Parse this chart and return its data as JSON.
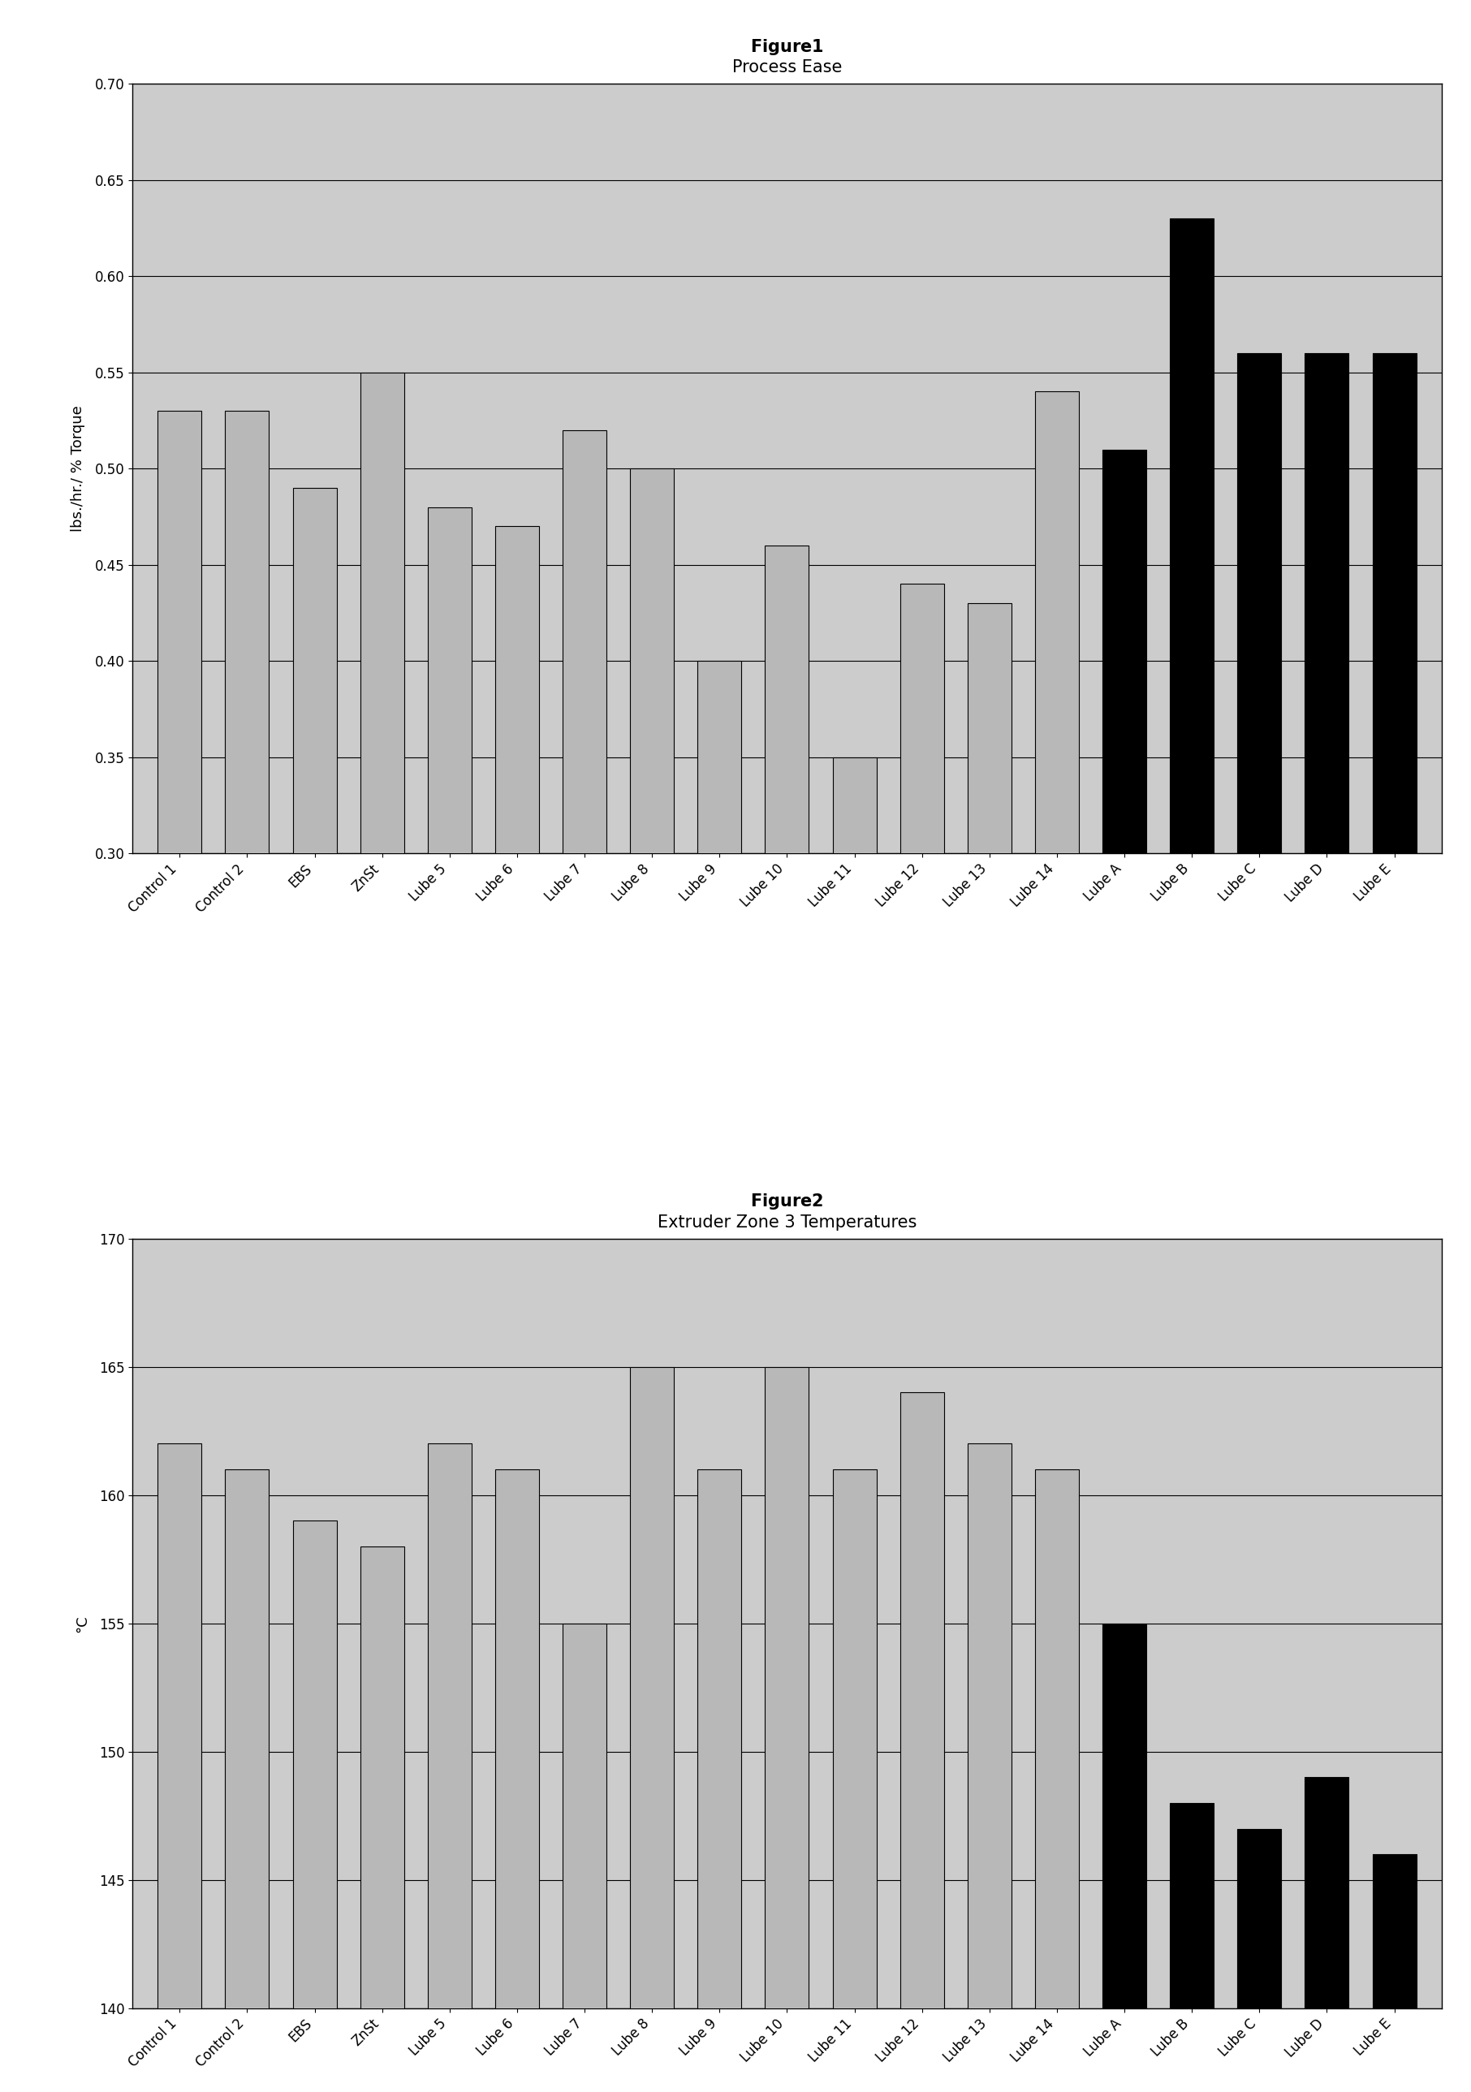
{
  "fig1_title": "Figure 1",
  "fig1_subtitle": "Process Ease",
  "fig1_ylabel": "lbs./hr./ % Torque",
  "fig1_ylim": [
    0.3,
    0.7
  ],
  "fig1_yticks": [
    0.3,
    0.35,
    0.4,
    0.45,
    0.5,
    0.55,
    0.6,
    0.65,
    0.7
  ],
  "fig2_title": "Figure 2",
  "fig2_subtitle": "Extruder Zone 3 Temperatures",
  "fig2_ylabel": "°C",
  "fig2_ylim": [
    140,
    170
  ],
  "fig2_yticks": [
    140,
    145,
    150,
    155,
    160,
    165,
    170
  ],
  "categories": [
    "Control 1",
    "Control 2",
    "EBS",
    "ZnSt",
    "Lube 5",
    "Lube 6",
    "Lube 7",
    "Lube 8",
    "Lube 9",
    "Lube 10",
    "Lube 11",
    "Lube 12",
    "Lube 13",
    "Lube 14",
    "Lube A",
    "Lube B",
    "Lube C",
    "Lube D",
    "Lube E"
  ],
  "fig1_values": [
    0.53,
    0.53,
    0.49,
    0.55,
    0.48,
    0.47,
    0.52,
    0.5,
    0.4,
    0.46,
    0.35,
    0.44,
    0.43,
    0.54,
    0.51,
    0.63,
    0.56,
    0.56,
    0.56
  ],
  "fig2_values": [
    162,
    161,
    159,
    158,
    162,
    161,
    155,
    165,
    161,
    165,
    161,
    164,
    162,
    161,
    155,
    148,
    147,
    149,
    146
  ],
  "background_color": "#cccccc",
  "title_fontsize": 15,
  "subtitle_fontsize": 14,
  "ylabel_fontsize": 13,
  "tick_fontsize": 12,
  "n_light": 14,
  "n_dark": 5,
  "bar_width": 0.65,
  "light_color": "#b8b8b8",
  "dark_color": "#000000",
  "edge_color": "#000000"
}
